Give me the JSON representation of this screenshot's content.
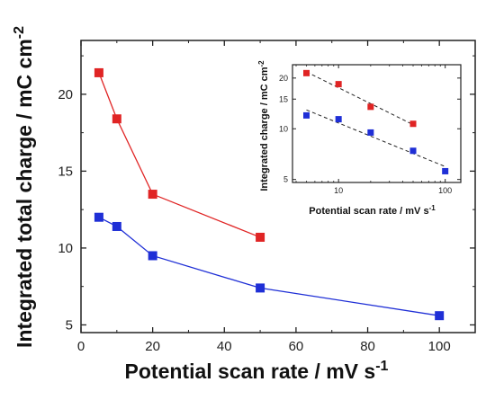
{
  "chart_data": [
    {
      "type": "line",
      "xlabel": "Potential scan rate / mV s",
      "xlabel_sup": "-1",
      "ylabel": "Integrated total charge / mC cm",
      "ylabel_sup": "-2",
      "xlim": [
        0,
        110
      ],
      "ylim": [
        4.5,
        23.5
      ],
      "xticks": [
        0,
        20,
        40,
        60,
        80,
        100
      ],
      "yticks": [
        5,
        10,
        15,
        20
      ],
      "grid": false,
      "colors": {
        "series_red": "#e02424",
        "series_blue": "#1f2fd6"
      },
      "series": [
        {
          "color": "#e02424",
          "x": [
            5,
            10,
            20,
            50
          ],
          "y": [
            21.4,
            18.4,
            13.5,
            10.7
          ]
        },
        {
          "color": "#1f2fd6",
          "x": [
            5,
            10,
            20,
            50,
            100
          ],
          "y": [
            12.0,
            11.4,
            9.5,
            7.4,
            5.6
          ]
        }
      ]
    },
    {
      "type": "scatter",
      "inset": true,
      "xscale": "log",
      "yscale": "log",
      "xlabel": "Potential scan rate / mV s",
      "xlabel_sup": "-1",
      "ylabel": "Integrated charge / mC cm",
      "ylabel_sup": "-2",
      "xlim": [
        3.7,
        140
      ],
      "ylim": [
        4.8,
        24
      ],
      "xticks": [
        10,
        100
      ],
      "yticks": [
        5,
        10,
        15,
        20
      ],
      "fit_lines": "dashed",
      "series": [
        {
          "color": "#e02424",
          "x": [
            5,
            10,
            20,
            50
          ],
          "y": [
            21.4,
            18.4,
            13.5,
            10.7
          ]
        },
        {
          "color": "#1f2fd6",
          "x": [
            5,
            10,
            20,
            50,
            100
          ],
          "y": [
            12.0,
            11.4,
            9.5,
            7.4,
            5.6
          ]
        }
      ]
    }
  ]
}
